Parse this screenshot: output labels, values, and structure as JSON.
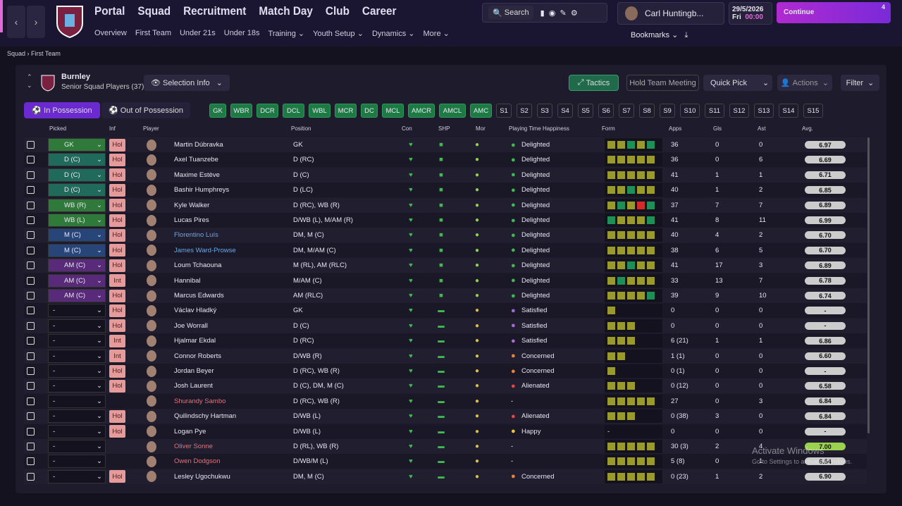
{
  "nav": {
    "main": [
      "Portal",
      "Squad",
      "Recruitment",
      "Match Day",
      "Club",
      "Career"
    ],
    "active_main": 1,
    "sub": [
      "Overview",
      "First Team",
      "Under 21s",
      "Under 18s",
      "Training",
      "Youth Setup",
      "Dynamics",
      "More"
    ],
    "active_sub": 1,
    "search": "Search",
    "manager": "Carl Huntingb...",
    "date": "29/5/2026",
    "day": "Fri",
    "time": "00:00",
    "continue": "Continue",
    "badge": "4",
    "bookmarks": "Bookmarks"
  },
  "breadcrumb": [
    "Squad",
    "First Team"
  ],
  "team": {
    "name": "Burnley",
    "subtitle": "Senior Squad Players (37)"
  },
  "buttons": {
    "selection_info": "Selection Info",
    "tactics": "Tactics",
    "meeting": "Hold Team Meeting",
    "quick_pick": "Quick Pick",
    "actions": "Actions",
    "filter": "Filter"
  },
  "tabs": [
    "In Possession",
    "Out of Possession"
  ],
  "positions": {
    "filled": [
      "GK",
      "WBR",
      "DCR",
      "DCL",
      "WBL",
      "MCR",
      "DC",
      "MCL",
      "AMCR",
      "AMCL",
      "AMC"
    ],
    "subs": [
      "S1",
      "S2",
      "S3",
      "S4",
      "S5",
      "S6",
      "S7",
      "S8",
      "S9",
      "S10",
      "S11",
      "S12",
      "S13",
      "S14",
      "S15"
    ]
  },
  "table": {
    "columns": [
      "Picked",
      "Inf",
      "Player",
      "Position",
      "Con",
      "SHP",
      "Mor",
      "Playing Time Happiness",
      "Form",
      "Apps",
      "Gls",
      "Ast",
      "Avg."
    ],
    "picked_colors": {
      "GK": "#2f7a3a",
      "D (C)": "#1f6a5a",
      "WB (R)": "#2f7a3a",
      "WB (L)": "#2f7a3a",
      "M (C)": "#28457a",
      "AM (C)": "#5a2a7a"
    },
    "happiness_colors": {
      "Delighted": "#3fb950",
      "Satisfied": "#a36bd6",
      "Concerned": "#e8853a",
      "Alienated": "#e04848",
      "Happy": "#e8c53a"
    },
    "form_colors": {
      "olive": "#9a9a2c",
      "green": "#1f8f58",
      "red": "#d42a2a"
    },
    "name_colors": {
      "loan": "#6aa8e6",
      "new": "#e3737a"
    },
    "rows": [
      {
        "picked": "GK",
        "inf": "Hol",
        "name": "Martin Dúbravka",
        "position": "GK",
        "happiness": "Delighted",
        "form": [
          "olive",
          "olive",
          "green",
          "olive",
          "green"
        ],
        "apps": "36",
        "gls": "0",
        "ast": "0",
        "avg": "6.97"
      },
      {
        "picked": "D (C)",
        "inf": "Hol",
        "name": "Axel Tuanzebe",
        "position": "D (RC)",
        "happiness": "Delighted",
        "form": [
          "olive",
          "olive",
          "olive",
          "olive",
          "olive"
        ],
        "apps": "36",
        "gls": "0",
        "ast": "6",
        "avg": "6.69"
      },
      {
        "picked": "D (C)",
        "inf": "Hol",
        "name": "Maxime Estève",
        "position": "D (C)",
        "happiness": "Delighted",
        "form": [
          "olive",
          "olive",
          "olive",
          "olive",
          "olive"
        ],
        "apps": "41",
        "gls": "1",
        "ast": "1",
        "avg": "6.71"
      },
      {
        "picked": "D (C)",
        "inf": "Hol",
        "name": "Bashir Humphreys",
        "position": "D (LC)",
        "happiness": "Delighted",
        "form": [
          "olive",
          "olive",
          "green",
          "olive",
          "olive"
        ],
        "apps": "40",
        "gls": "1",
        "ast": "2",
        "avg": "6.85"
      },
      {
        "picked": "WB (R)",
        "inf": "Hol",
        "name": "Kyle Walker",
        "position": "D (RC), WB (R)",
        "happiness": "Delighted",
        "form": [
          "olive",
          "green",
          "olive",
          "red",
          "green"
        ],
        "apps": "37",
        "gls": "7",
        "ast": "7",
        "avg": "6.89"
      },
      {
        "picked": "WB (L)",
        "inf": "Hol",
        "name": "Lucas Pires",
        "position": "D/WB (L), M/AM (R)",
        "happiness": "Delighted",
        "form": [
          "green",
          "olive",
          "olive",
          "olive",
          "green"
        ],
        "apps": "41",
        "gls": "8",
        "ast": "11",
        "avg": "6.99"
      },
      {
        "picked": "M (C)",
        "inf": "Hol",
        "name": "Florentino Luís",
        "name_color": "loan",
        "position": "DM, M (C)",
        "happiness": "Delighted",
        "form": [
          "olive",
          "olive",
          "olive",
          "olive",
          "olive"
        ],
        "apps": "40",
        "gls": "4",
        "ast": "2",
        "avg": "6.70"
      },
      {
        "picked": "M (C)",
        "inf": "Hol",
        "name": "James Ward-Prowse",
        "name_color": "loan",
        "position": "DM, M/AM (C)",
        "happiness": "Delighted",
        "form": [
          "olive",
          "olive",
          "olive",
          "olive",
          "olive"
        ],
        "apps": "38",
        "gls": "6",
        "ast": "5",
        "avg": "6.70"
      },
      {
        "picked": "AM (C)",
        "inf": "Hol",
        "name": "Loum Tchaouna",
        "position": "M (RL), AM (RLC)",
        "happiness": "Delighted",
        "form": [
          "olive",
          "olive",
          "green",
          "olive",
          "olive"
        ],
        "apps": "41",
        "gls": "17",
        "ast": "3",
        "avg": "6.89"
      },
      {
        "picked": "AM (C)",
        "inf": "Int",
        "name": "Hannibal",
        "position": "M/AM (C)",
        "happiness": "Delighted",
        "form": [
          "olive",
          "green",
          "olive",
          "olive",
          "olive"
        ],
        "apps": "33",
        "gls": "13",
        "ast": "7",
        "avg": "6.78"
      },
      {
        "picked": "AM (C)",
        "inf": "Hol",
        "name": "Marcus Edwards",
        "position": "AM (RLC)",
        "happiness": "Delighted",
        "form": [
          "olive",
          "olive",
          "olive",
          "olive",
          "green"
        ],
        "apps": "39",
        "gls": "9",
        "ast": "10",
        "avg": "6.74"
      },
      {
        "picked": "-",
        "inf": "Hol",
        "name": "Václav Hladký",
        "position": "GK",
        "happiness": "Satisfied",
        "form": [
          "olive"
        ],
        "apps": "0",
        "gls": "0",
        "ast": "0",
        "avg": "-"
      },
      {
        "picked": "-",
        "inf": "Hol",
        "name": "Joe Worrall",
        "position": "D (C)",
        "happiness": "Satisfied",
        "form": [
          "olive",
          "olive",
          "olive"
        ],
        "apps": "0",
        "gls": "0",
        "ast": "0",
        "avg": "-"
      },
      {
        "picked": "-",
        "inf": "Int",
        "name": "Hjalmar Ekdal",
        "position": "D (RC)",
        "happiness": "Satisfied",
        "form": [
          "olive",
          "olive",
          "olive"
        ],
        "apps": "6 (21)",
        "gls": "1",
        "ast": "1",
        "avg": "6.86"
      },
      {
        "picked": "-",
        "inf": "Int",
        "name": "Connor Roberts",
        "position": "D/WB (R)",
        "happiness": "Concerned",
        "form": [
          "olive",
          "olive"
        ],
        "apps": "1 (1)",
        "gls": "0",
        "ast": "0",
        "avg": "6.60"
      },
      {
        "picked": "-",
        "inf": "Hol",
        "name": "Jordan Beyer",
        "position": "D (RC), WB (R)",
        "happiness": "Concerned",
        "form": [
          "olive"
        ],
        "apps": "0 (1)",
        "gls": "0",
        "ast": "0",
        "avg": "-"
      },
      {
        "picked": "-",
        "inf": "Hol",
        "name": "Josh Laurent",
        "position": "D (C), DM, M (C)",
        "happiness": "Alienated",
        "form": [
          "olive",
          "olive",
          "olive"
        ],
        "apps": "0 (12)",
        "gls": "0",
        "ast": "0",
        "avg": "6.58"
      },
      {
        "picked": "-",
        "name": "Shurandy Sambo",
        "name_color": "new",
        "position": "D (RC), WB (R)",
        "happiness": "-",
        "form": [
          "olive",
          "olive",
          "olive",
          "olive",
          "olive"
        ],
        "apps": "27",
        "gls": "0",
        "ast": "3",
        "avg": "6.84"
      },
      {
        "picked": "-",
        "inf": "Hol",
        "name": "Quilindschy Hartman",
        "position": "D/WB (L)",
        "happiness": "Alienated",
        "form": [
          "olive",
          "olive",
          "olive"
        ],
        "apps": "0 (38)",
        "gls": "3",
        "ast": "0",
        "avg": "6.84"
      },
      {
        "picked": "-",
        "inf": "Hol",
        "name": "Logan Pye",
        "position": "D/WB (L)",
        "happiness": "Happy",
        "form_text": "-",
        "apps": "0",
        "gls": "0",
        "ast": "0",
        "avg": "-"
      },
      {
        "picked": "-",
        "name": "Oliver Sonne",
        "name_color": "new",
        "position": "D (RL), WB (R)",
        "happiness": "-",
        "form": [
          "olive",
          "olive",
          "olive",
          "olive",
          "olive"
        ],
        "apps": "30 (3)",
        "gls": "2",
        "ast": "4",
        "avg": "7.00"
      },
      {
        "picked": "-",
        "name": "Owen Dodgson",
        "name_color": "new",
        "position": "D/WB/M (L)",
        "happiness": "-",
        "form": [
          "olive",
          "olive",
          "olive",
          "olive",
          "olive"
        ],
        "apps": "5 (8)",
        "gls": "0",
        "ast": "1",
        "avg": "6.54"
      },
      {
        "picked": "-",
        "inf": "Hol",
        "name": "Lesley Ugochukwu",
        "position": "DM, M (C)",
        "happiness": "Concerned",
        "form": [
          "olive",
          "olive",
          "olive",
          "olive",
          "olive"
        ],
        "apps": "0 (23)",
        "gls": "1",
        "ast": "2",
        "avg": "6.90"
      }
    ]
  },
  "watermark": {
    "title": "Activate Windows",
    "text": "Go to Settings to activate Windows."
  }
}
